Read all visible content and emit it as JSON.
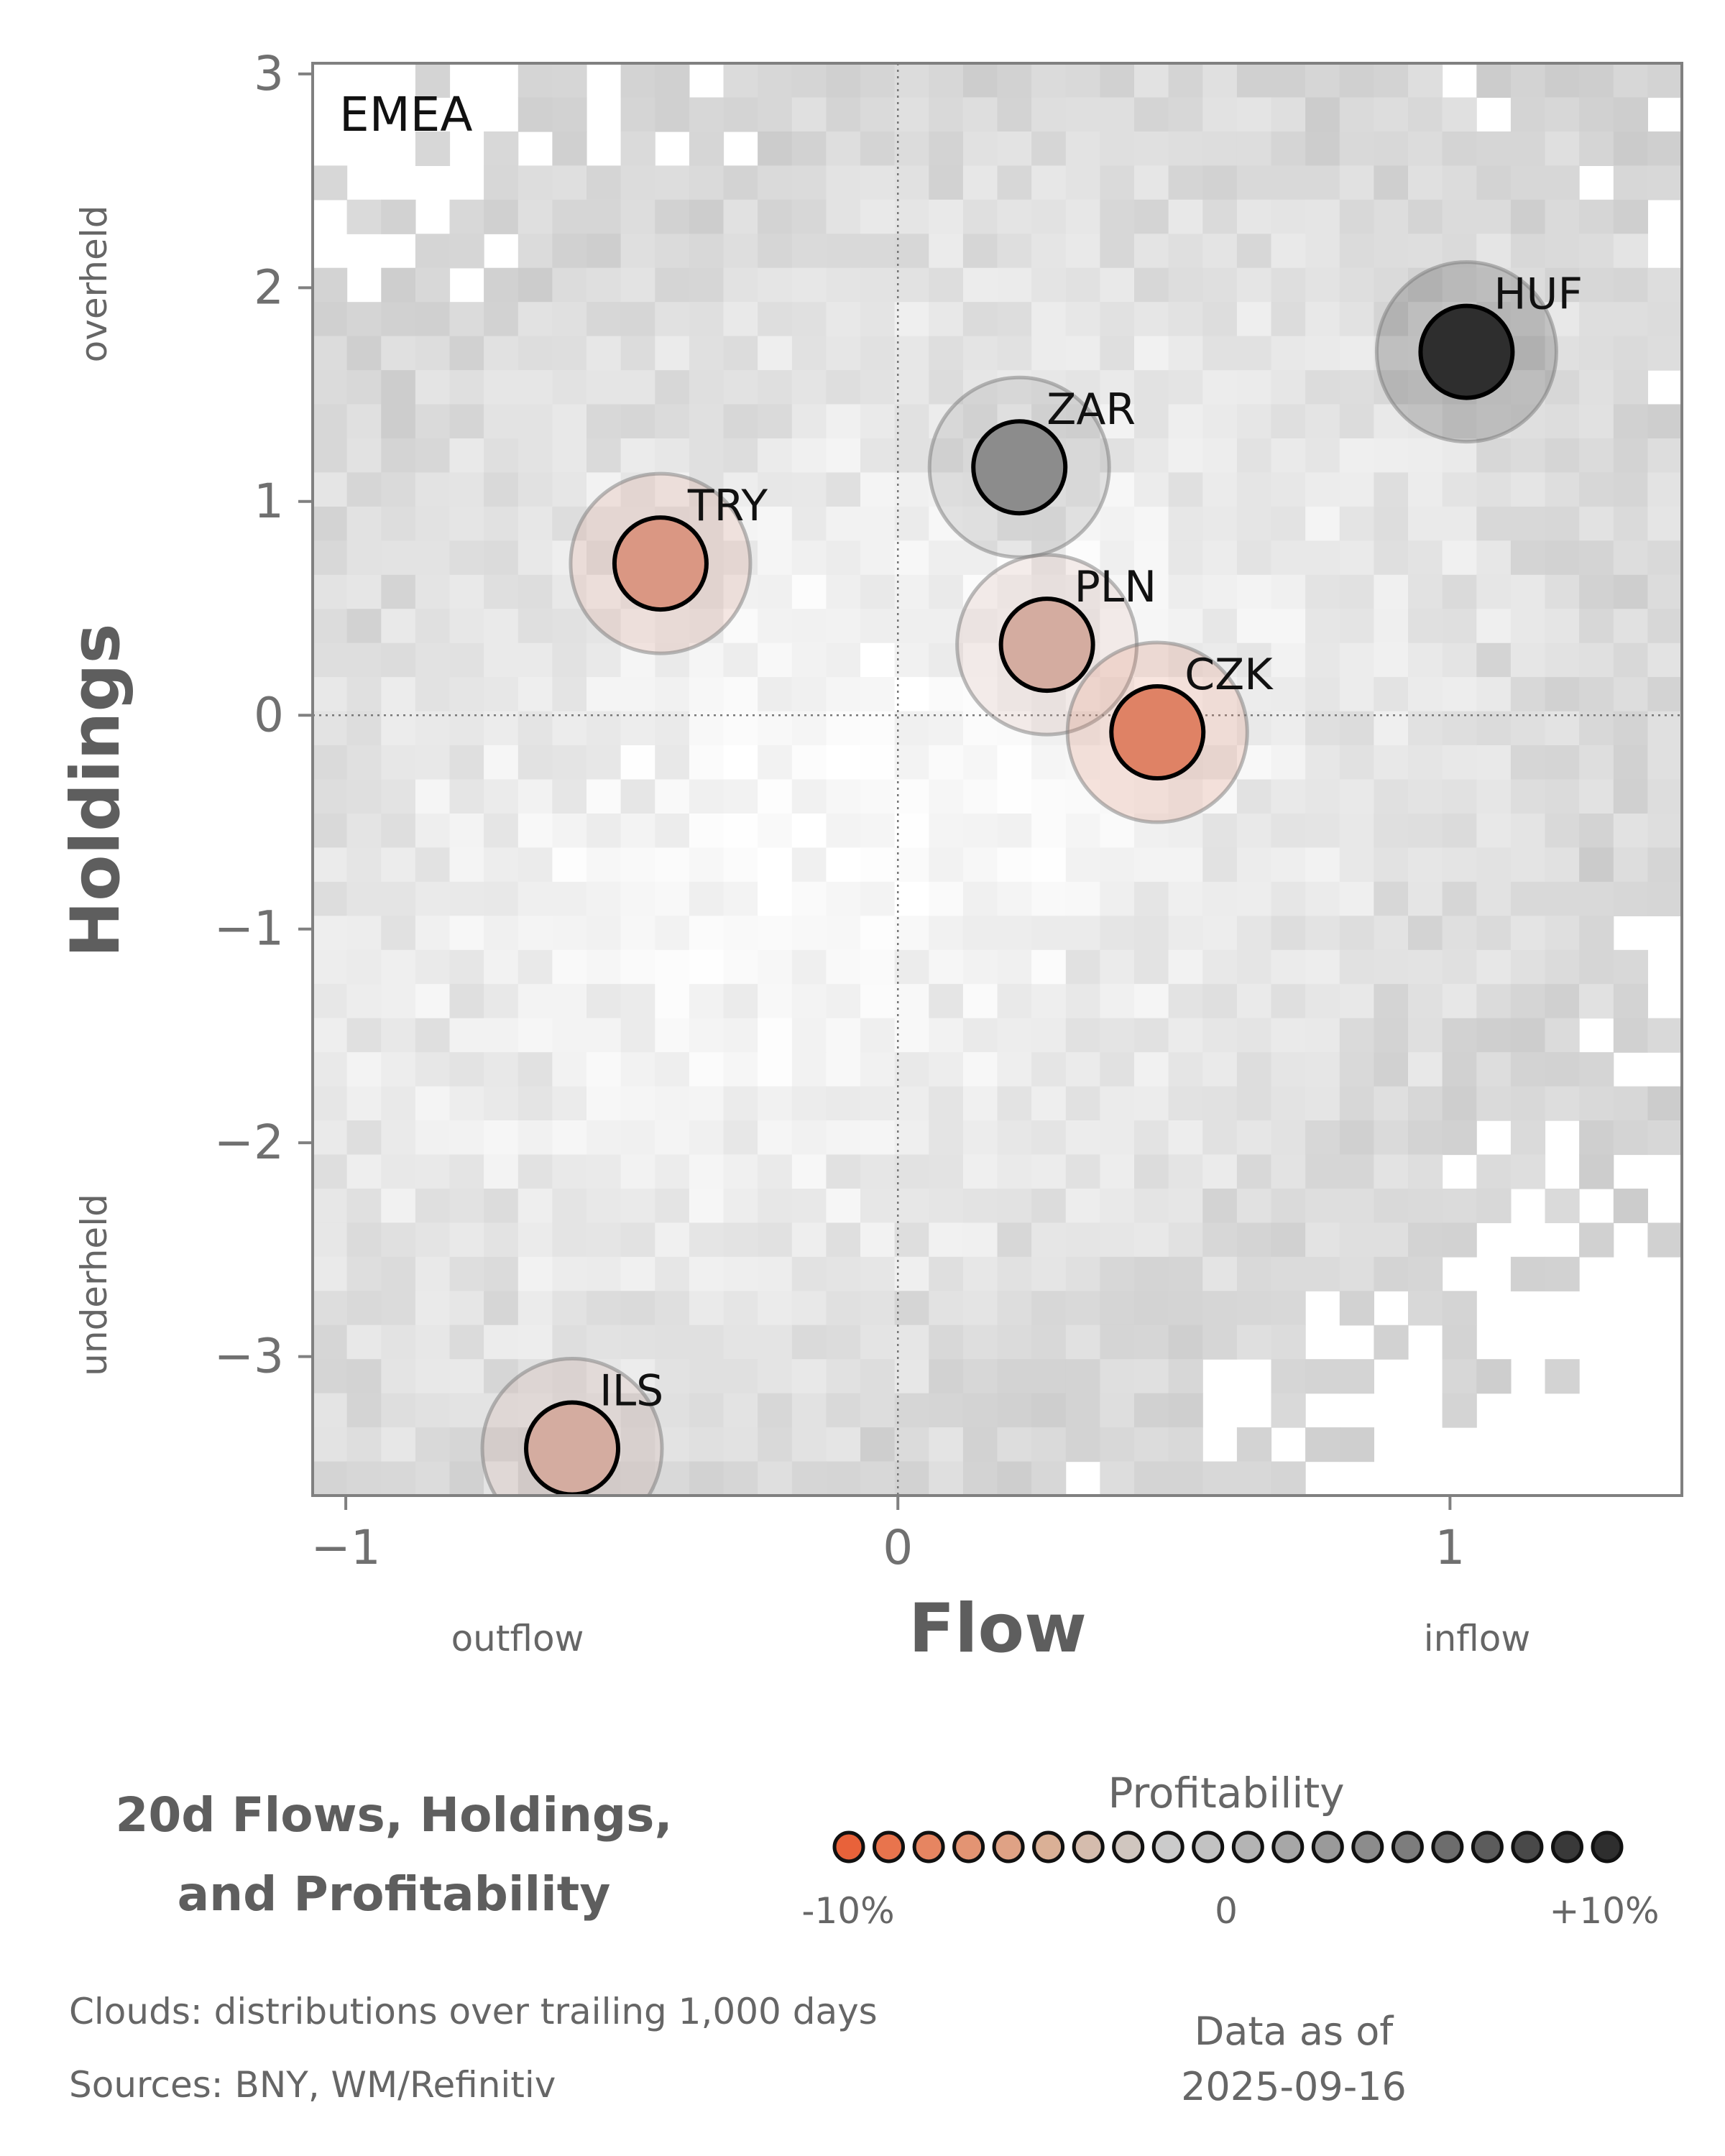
{
  "chart_data": {
    "type": "scatter",
    "region_label": "EMEA",
    "xlabel": "Flow",
    "ylabel": "Holdings",
    "xlim": [
      -1.06,
      1.42
    ],
    "ylim": [
      -3.65,
      3.05
    ],
    "xticks": [
      -1,
      0,
      1
    ],
    "xtick_labels": [
      "−1",
      "0",
      "1"
    ],
    "yticks": [
      -3,
      -2,
      -1,
      0,
      1,
      2,
      3
    ],
    "ytick_labels": [
      "−3",
      "−2",
      "−1",
      "0",
      "1",
      "2",
      "3"
    ],
    "x_annotations": {
      "low": "outflow",
      "high": "inflow"
    },
    "y_annotations": {
      "high": "overheld",
      "low": "underheld"
    },
    "reference_lines": {
      "x": 0,
      "y": 0
    },
    "points": [
      {
        "label": "HUF",
        "x": 1.03,
        "y": 1.7,
        "profitability": 0.1
      },
      {
        "label": "ZAR",
        "x": 0.22,
        "y": 1.16,
        "profitability": 0.04
      },
      {
        "label": "TRY",
        "x": -0.43,
        "y": 0.71,
        "profitability": -0.05
      },
      {
        "label": "PLN",
        "x": 0.27,
        "y": 0.33,
        "profitability": -0.03
      },
      {
        "label": "CZK",
        "x": 0.47,
        "y": -0.08,
        "profitability": -0.07
      },
      {
        "label": "ILS",
        "x": -0.59,
        "y": -3.43,
        "profitability": -0.03
      }
    ]
  },
  "title_line1": "20d Flows, Holdings,",
  "title_line2": "and Profitability",
  "legend": {
    "title": "Profitability",
    "min_label": "-10%",
    "mid_label": "0",
    "max_label": "+10%",
    "colors": [
      "#e8623a",
      "#e8744d",
      "#e68561",
      "#e39473",
      "#dfa285",
      "#dab096",
      "#d5bcad",
      "#d0c6bf",
      "#cbcbcb",
      "#c2c2c2",
      "#b4b4b4",
      "#a7a7a7",
      "#9a9a9a",
      "#8c8c8c",
      "#7d7d7d",
      "#6d6d6d",
      "#5c5c5c",
      "#494949",
      "#393939",
      "#2e2e2e"
    ]
  },
  "footer": {
    "clouds": "Clouds:  distributions over trailing 1,000 days",
    "sources": "Sources:  BNY, WM/Refinitiv",
    "asof_line1": "Data as of",
    "asof_line2": "2025-09-16"
  }
}
